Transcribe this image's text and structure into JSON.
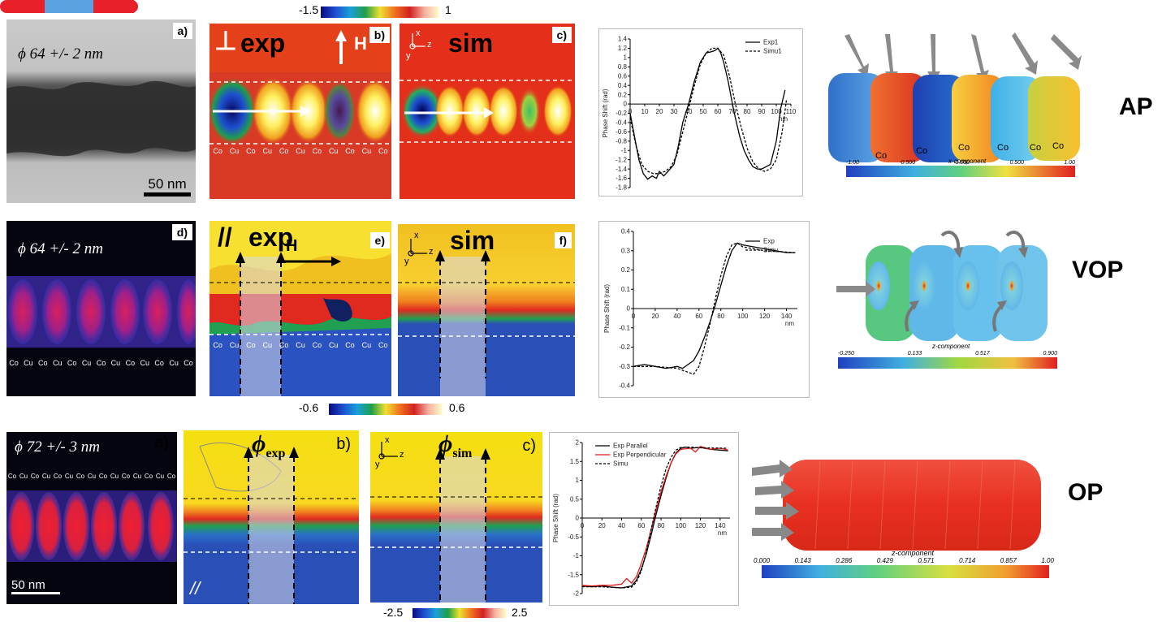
{
  "row1": {
    "tem": {
      "label": "a)",
      "diameter": "ϕ 64 +/- 2 nm",
      "scale": "50 nm"
    },
    "exp": {
      "label": "b)",
      "title": "exp",
      "perp": "⊥",
      "field": "H"
    },
    "sim": {
      "label": "c)",
      "title": "sim"
    },
    "colorbar": {
      "min": "-1.5",
      "max": "1"
    },
    "axes": {
      "x": "x",
      "z": "z",
      "y": "y"
    },
    "layers": [
      "Co",
      "Cu",
      "Co",
      "Cu",
      "Co",
      "Cu",
      "Co",
      "Cu",
      "Co",
      "Cu",
      "Co"
    ],
    "state": "AP"
  },
  "row2": {
    "map": {
      "label": "d)",
      "diameter": "ϕ 64 +/- 2 nm"
    },
    "exp": {
      "label": "e)",
      "title": "exp",
      "par": "//",
      "field": "H"
    },
    "sim": {
      "label": "f)",
      "title": "sim"
    },
    "colorbar": {
      "min": "-0.6",
      "max": "0.6"
    },
    "layers": [
      "Co",
      "Cu",
      "Co",
      "Cu",
      "Co",
      "Cu",
      "Co",
      "Cu",
      "Co",
      "Cu",
      "Co",
      "Cu",
      "Co"
    ],
    "exp_layers": [
      "Co",
      "Cu",
      "Co",
      "Cu",
      "Co",
      "Cu",
      "Co",
      "Cu",
      "Co",
      "Cu",
      "Co"
    ],
    "state": "VOP"
  },
  "row3": {
    "map": {
      "label": "a)",
      "diameter": "ϕ 72 +/- 3 nm",
      "scale": "50 nm"
    },
    "exp": {
      "label": "b)",
      "title": "ϕexp",
      "phi": "ϕ",
      "sub": "exp",
      "par": "//"
    },
    "sim": {
      "label": "c)",
      "title": "ϕsim",
      "phi": "ϕ",
      "sub": "sim"
    },
    "colorbar": {
      "min": "-2.5",
      "max": "2.5"
    },
    "layers": [
      "Co",
      "Cu",
      "Co",
      "Cu",
      "Co",
      "Cu",
      "Co",
      "Cu",
      "Co",
      "Cu",
      "Co",
      "Cu",
      "Co",
      "Cu",
      "Co"
    ],
    "state": "OP"
  },
  "sim3d": {
    "ap": {
      "labels": [
        "Co",
        "Co",
        "Co",
        "Co",
        "Co",
        "Co"
      ],
      "component": "x-component",
      "ticks": [
        "-1.00",
        "-0.500",
        "0.000",
        "0.500",
        "1.00"
      ]
    },
    "vop": {
      "component": "z-component",
      "ticks": [
        "-0.250",
        "0.133",
        "0.517",
        "0.900"
      ]
    },
    "op": {
      "component": "z-component",
      "ticks": [
        "0.000",
        "0.143",
        "0.286",
        "0.429",
        "0.571",
        "0.714",
        "0.857",
        "1.00"
      ]
    }
  },
  "colors": {
    "co_red": "#e8202a",
    "cu_blue": "#3b47c8",
    "exp_bg": "#d73027",
    "sim_bg": "#e4301a"
  },
  "chart_data": [
    {
      "type": "line",
      "xlabel": "nm",
      "ylabel": "Phase Shift (rad)",
      "xlim": [
        0,
        110
      ],
      "ylim": [
        -1.8,
        1.4
      ],
      "xticks": [
        0,
        10,
        20,
        30,
        40,
        50,
        60,
        70,
        80,
        90,
        100,
        110
      ],
      "yticks": [
        1.4,
        1.2,
        1,
        0.8,
        0.6,
        0.4,
        0.2,
        0,
        -0.2,
        -0.4,
        -0.6,
        -0.8,
        -1,
        -1.2,
        -1.4,
        -1.6,
        -1.8
      ],
      "legend": "top-right",
      "series": [
        {
          "name": "Exp1",
          "style": "solid",
          "x": [
            0,
            3,
            6,
            9,
            12,
            15,
            18,
            20,
            23,
            26,
            30,
            33,
            36,
            40,
            44,
            48,
            52,
            55,
            58,
            60,
            62,
            64,
            67,
            70,
            72,
            75,
            78,
            81,
            84,
            87,
            90,
            93,
            96,
            100,
            103,
            106
          ],
          "y": [
            -0.2,
            -0.7,
            -1.2,
            -1.5,
            -1.62,
            -1.55,
            -1.6,
            -1.45,
            -1.55,
            -1.45,
            -1.3,
            -0.9,
            -0.4,
            0.0,
            0.5,
            0.9,
            1.1,
            1.12,
            1.15,
            1.2,
            1.1,
            0.9,
            0.5,
            0.0,
            -0.3,
            -0.7,
            -1.0,
            -1.2,
            -1.35,
            -1.4,
            -1.4,
            -1.35,
            -1.3,
            -0.8,
            -0.1,
            0.3
          ]
        },
        {
          "name": "Simu1",
          "style": "dashed",
          "x": [
            0,
            4,
            8,
            12,
            16,
            20,
            24,
            28,
            32,
            36,
            40,
            44,
            48,
            52,
            56,
            60,
            64,
            68,
            72,
            76,
            80,
            84,
            88,
            92,
            96,
            100,
            104,
            107
          ],
          "y": [
            -0.3,
            -0.9,
            -1.3,
            -1.45,
            -1.5,
            -1.5,
            -1.45,
            -1.35,
            -1.1,
            -0.6,
            -0.1,
            0.4,
            0.85,
            1.1,
            1.2,
            1.2,
            1.05,
            0.6,
            0.0,
            -0.5,
            -0.95,
            -1.25,
            -1.4,
            -1.45,
            -1.4,
            -1.2,
            -0.6,
            0.1
          ]
        }
      ]
    },
    {
      "type": "line",
      "xlabel": "nm",
      "ylabel": "Phase Shift (rad)",
      "xlim": [
        0,
        150
      ],
      "ylim": [
        -0.4,
        0.4
      ],
      "xticks": [
        0,
        20,
        40,
        60,
        80,
        100,
        120,
        140
      ],
      "yticks": [
        0.4,
        0.3,
        0.2,
        0.1,
        0,
        -0.1,
        -0.2,
        -0.3,
        -0.4
      ],
      "legend": "top-right",
      "series": [
        {
          "name": "Exp",
          "style": "solid",
          "x": [
            0,
            10,
            20,
            30,
            40,
            45,
            50,
            55,
            60,
            65,
            70,
            75,
            80,
            85,
            90,
            95,
            100,
            110,
            120,
            130,
            140,
            148
          ],
          "y": [
            -0.3,
            -0.29,
            -0.3,
            -0.31,
            -0.3,
            -0.31,
            -0.29,
            -0.27,
            -0.22,
            -0.15,
            -0.07,
            0.02,
            0.12,
            0.22,
            0.3,
            0.34,
            0.33,
            0.32,
            0.31,
            0.3,
            0.29,
            0.29
          ]
        },
        {
          "name": "Simu",
          "style": "dashed",
          "x": [
            0,
            20,
            40,
            50,
            55,
            60,
            65,
            70,
            75,
            80,
            85,
            90,
            95,
            100,
            120,
            148
          ],
          "y": [
            -0.3,
            -0.3,
            -0.31,
            -0.33,
            -0.34,
            -0.3,
            -0.2,
            -0.08,
            0.05,
            0.17,
            0.27,
            0.33,
            0.34,
            0.32,
            0.3,
            0.29
          ]
        }
      ]
    },
    {
      "type": "line",
      "xlabel": "nm",
      "ylabel": "Phase Shift (rad)",
      "xlim": [
        0,
        150
      ],
      "ylim": [
        -2,
        2
      ],
      "xticks": [
        0,
        20,
        40,
        60,
        80,
        100,
        120,
        140
      ],
      "yticks": [
        2,
        1.5,
        1,
        0.5,
        0,
        -0.5,
        -1,
        -1.5,
        -2
      ],
      "legend": "top-left",
      "series": [
        {
          "name": "Exp Parallel",
          "color": "#000000",
          "style": "solid",
          "x": [
            0,
            10,
            20,
            30,
            40,
            50,
            55,
            60,
            65,
            70,
            75,
            80,
            85,
            90,
            95,
            100,
            105,
            110,
            120,
            130,
            140,
            148
          ],
          "y": [
            -1.8,
            -1.82,
            -1.8,
            -1.83,
            -1.85,
            -1.8,
            -1.65,
            -1.35,
            -0.95,
            -0.45,
            0.1,
            0.6,
            1.05,
            1.45,
            1.72,
            1.85,
            1.88,
            1.85,
            1.87,
            1.82,
            1.8,
            1.78
          ]
        },
        {
          "name": "Exp Perpendicular",
          "color": "#e41a1c",
          "style": "solid",
          "x": [
            0,
            10,
            20,
            30,
            40,
            45,
            50,
            55,
            60,
            65,
            70,
            75,
            80,
            85,
            90,
            95,
            100,
            110,
            115,
            120,
            130,
            140,
            148
          ],
          "y": [
            -1.78,
            -1.8,
            -1.78,
            -1.78,
            -1.75,
            -1.6,
            -1.72,
            -1.55,
            -1.2,
            -0.8,
            -0.3,
            0.2,
            0.7,
            1.1,
            1.45,
            1.7,
            1.82,
            1.85,
            1.75,
            1.9,
            1.82,
            1.85,
            1.8
          ]
        },
        {
          "name": "Simu",
          "color": "#000000",
          "style": "dashed",
          "x": [
            0,
            20,
            40,
            50,
            55,
            60,
            65,
            70,
            75,
            80,
            85,
            90,
            95,
            100,
            110,
            120,
            148
          ],
          "y": [
            -1.82,
            -1.82,
            -1.85,
            -1.83,
            -1.7,
            -1.4,
            -0.9,
            -0.3,
            0.3,
            0.85,
            1.3,
            1.6,
            1.8,
            1.87,
            1.88,
            1.86,
            1.85
          ]
        }
      ]
    }
  ]
}
